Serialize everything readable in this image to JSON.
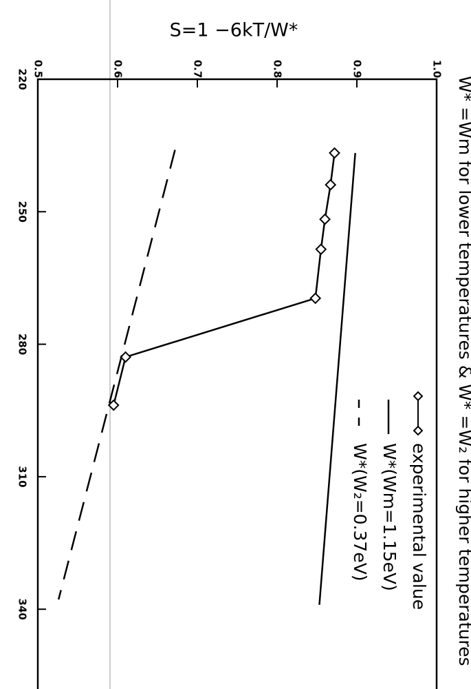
{
  "chart_data": {
    "type": "line",
    "title": "W* =Wm for lower temperatures & W* =W₂ for higher temperatures",
    "ylabel": "S=1 −6kT/W*",
    "xlim": [
      220,
      357
    ],
    "xticks": [
      220,
      250,
      280,
      310,
      340
    ],
    "ylim": [
      0.5,
      1.0
    ],
    "yticks": [
      0.5,
      0.6,
      0.7,
      0.8,
      {
        "value": 1.0,
        "label": "1.0"
      },
      0.9
    ],
    "series": [
      {
        "name": "experimental value",
        "color": "#000",
        "style": "marker-line",
        "x": [
          236.7,
          243.9,
          251.7,
          258.5,
          269.6,
          282.9,
          293.8
        ],
        "values": [
          0.872,
          0.867,
          0.86,
          0.855,
          0.848,
          0.61,
          0.595
        ]
      },
      {
        "name": "W*(Wm=1.15eV)",
        "color": "#000",
        "style": "solid",
        "x": [
          236.7,
          339
        ],
        "values": [
          0.898,
          0.853
        ]
      },
      {
        "name": "W*(W₂=0.37eV)",
        "color": "#000",
        "style": "dashed",
        "x": [
          236,
          337.8
        ],
        "values": [
          0.672,
          0.526
        ]
      }
    ]
  }
}
